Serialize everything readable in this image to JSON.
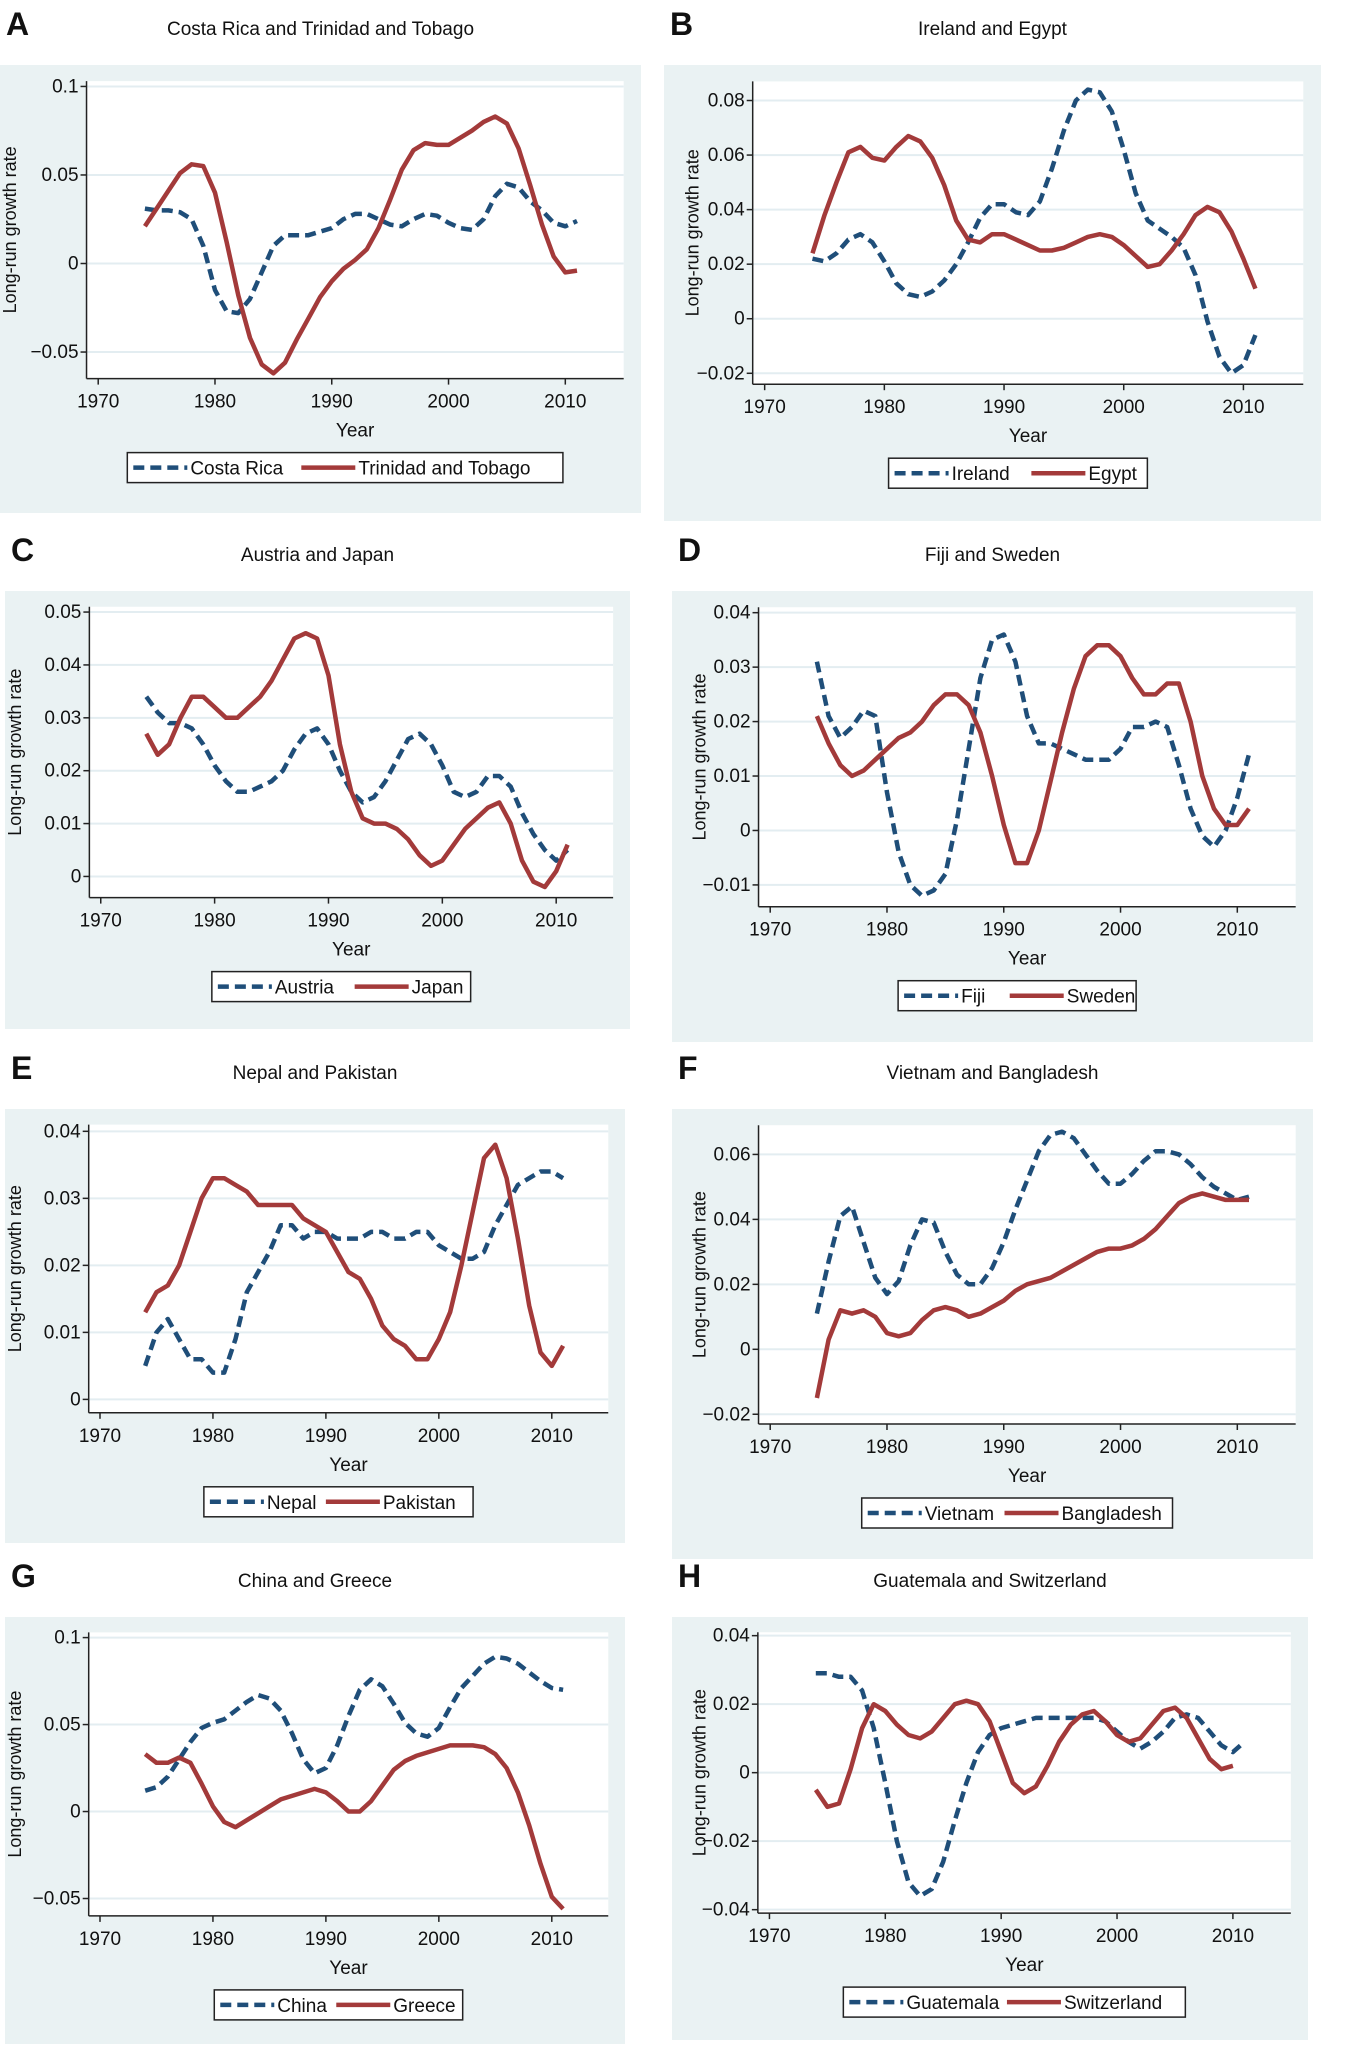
{
  "chart_data": [
    {
      "type": "line",
      "panel": "A",
      "title": "Costa Rica and Trinidad and Tobago",
      "xlabel": "Year",
      "ylabel": "Long-run growth rate",
      "xticks": [
        1970,
        1980,
        1990,
        2000,
        2010
      ],
      "yticks": [
        -0.05,
        0,
        0.05,
        0.1
      ],
      "ytick_labels": [
        "−0.05",
        "0",
        "0.05",
        "0.1"
      ],
      "xlim": [
        1969,
        2015
      ],
      "ylim": [
        -0.065,
        0.103
      ],
      "grid": true,
      "legend": "bottom",
      "series": [
        {
          "name": "Costa Rica",
          "style": "dashed",
          "color": "#1f4e79",
          "values": [
            0.031,
            0.03,
            0.03,
            0.029,
            0.025,
            0.01,
            -0.015,
            -0.027,
            -0.028,
            -0.02,
            -0.005,
            0.01,
            0.016,
            0.016,
            0.016,
            0.018,
            0.02,
            0.025,
            0.028,
            0.028,
            0.025,
            0.022,
            0.021,
            0.025,
            0.028,
            0.027,
            0.023,
            0.02,
            0.019,
            0.025,
            0.038,
            0.045,
            0.043,
            0.035,
            0.03,
            0.023,
            0.021,
            0.024
          ]
        },
        {
          "name": "Trinidad and Tobago",
          "style": "solid",
          "color": "#a33a3a",
          "values": [
            0.021,
            0.031,
            0.041,
            0.051,
            0.056,
            0.055,
            0.04,
            0.012,
            -0.018,
            -0.042,
            -0.057,
            -0.062,
            -0.056,
            -0.043,
            -0.031,
            -0.019,
            -0.01,
            -0.003,
            0.002,
            0.008,
            0.02,
            0.036,
            0.053,
            0.064,
            0.068,
            0.067,
            0.067,
            0.071,
            0.075,
            0.08,
            0.083,
            0.079,
            0.065,
            0.044,
            0.022,
            0.004,
            -0.005,
            -0.004
          ]
        }
      ]
    },
    {
      "type": "line",
      "panel": "B",
      "title": "Ireland and Egypt",
      "xlabel": "Year",
      "ylabel": "Long-run growth rate",
      "xticks": [
        1970,
        1980,
        1990,
        2000,
        2010
      ],
      "yticks": [
        -0.02,
        0,
        0.02,
        0.04,
        0.06,
        0.08
      ],
      "ytick_labels": [
        "−0.02",
        "0",
        "0.02",
        "0.04",
        "0.06",
        "0.08"
      ],
      "xlim": [
        1969,
        2015
      ],
      "ylim": [
        -0.024,
        0.087
      ],
      "grid": true,
      "legend": "bottom",
      "series": [
        {
          "name": "Ireland",
          "style": "dashed",
          "color": "#1f4e79",
          "values": [
            0.022,
            0.021,
            0.024,
            0.029,
            0.031,
            0.028,
            0.021,
            0.013,
            0.009,
            0.008,
            0.01,
            0.014,
            0.02,
            0.028,
            0.037,
            0.042,
            0.042,
            0.039,
            0.038,
            0.043,
            0.055,
            0.069,
            0.08,
            0.084,
            0.083,
            0.076,
            0.062,
            0.046,
            0.036,
            0.033,
            0.03,
            0.026,
            0.016,
            -0.001,
            -0.014,
            -0.02,
            -0.017,
            -0.006
          ]
        },
        {
          "name": "Egypt",
          "style": "solid",
          "color": "#a33a3a",
          "values": [
            0.024,
            0.038,
            0.05,
            0.061,
            0.063,
            0.059,
            0.058,
            0.063,
            0.067,
            0.065,
            0.059,
            0.049,
            0.036,
            0.029,
            0.028,
            0.031,
            0.031,
            0.029,
            0.027,
            0.025,
            0.025,
            0.026,
            0.028,
            0.03,
            0.031,
            0.03,
            0.027,
            0.023,
            0.019,
            0.02,
            0.025,
            0.031,
            0.038,
            0.041,
            0.039,
            0.032,
            0.022,
            0.011
          ]
        }
      ]
    },
    {
      "type": "line",
      "panel": "C",
      "title": "Austria and Japan",
      "xlabel": "Year",
      "ylabel": "Long-run growth rate",
      "xticks": [
        1970,
        1980,
        1990,
        2000,
        2010
      ],
      "yticks": [
        0,
        0.01,
        0.02,
        0.03,
        0.04,
        0.05
      ],
      "ytick_labels": [
        "0",
        "0.01",
        "0.02",
        "0.03",
        "0.04",
        "0.05"
      ],
      "xlim": [
        1969,
        2015
      ],
      "ylim": [
        -0.004,
        0.051
      ],
      "grid": true,
      "legend": "bottom",
      "series": [
        {
          "name": "Austria",
          "style": "dashed",
          "color": "#1f4e79",
          "values": [
            0.034,
            0.031,
            0.029,
            0.029,
            0.028,
            0.025,
            0.021,
            0.018,
            0.016,
            0.016,
            0.017,
            0.018,
            0.02,
            0.024,
            0.027,
            0.028,
            0.025,
            0.02,
            0.016,
            0.014,
            0.015,
            0.018,
            0.022,
            0.026,
            0.027,
            0.025,
            0.021,
            0.016,
            0.015,
            0.016,
            0.019,
            0.019,
            0.017,
            0.012,
            0.008,
            0.005,
            0.003,
            0.005
          ]
        },
        {
          "name": "Japan",
          "style": "solid",
          "color": "#a33a3a",
          "values": [
            0.027,
            0.023,
            0.025,
            0.03,
            0.034,
            0.034,
            0.032,
            0.03,
            0.03,
            0.032,
            0.034,
            0.037,
            0.041,
            0.045,
            0.046,
            0.045,
            0.038,
            0.025,
            0.016,
            0.011,
            0.01,
            0.01,
            0.009,
            0.007,
            0.004,
            0.002,
            0.003,
            0.006,
            0.009,
            0.011,
            0.013,
            0.014,
            0.01,
            0.003,
            -0.001,
            -0.002,
            0.001,
            0.006
          ]
        }
      ]
    },
    {
      "type": "line",
      "panel": "D",
      "title": "Fiji and Sweden",
      "xlabel": "Year",
      "ylabel": "Long-run growth rate",
      "xticks": [
        1970,
        1980,
        1990,
        2000,
        2010
      ],
      "yticks": [
        -0.01,
        0,
        0.01,
        0.02,
        0.03,
        0.04
      ],
      "ytick_labels": [
        "−0.01",
        "0",
        "0.01",
        "0.02",
        "0.03",
        "0.04"
      ],
      "xlim": [
        1969,
        2015
      ],
      "ylim": [
        -0.014,
        0.041
      ],
      "grid": true,
      "legend": "bottom",
      "series": [
        {
          "name": "Fiji",
          "style": "dashed",
          "color": "#1f4e79",
          "values": [
            0.031,
            0.021,
            0.017,
            0.019,
            0.022,
            0.021,
            0.007,
            -0.004,
            -0.01,
            -0.012,
            -0.011,
            -0.008,
            0.002,
            0.015,
            0.028,
            0.035,
            0.036,
            0.031,
            0.021,
            0.016,
            0.016,
            0.015,
            0.014,
            0.013,
            0.013,
            0.013,
            0.015,
            0.019,
            0.019,
            0.02,
            0.019,
            0.012,
            0.004,
            -0.001,
            -0.003,
            0.0,
            0.006,
            0.014
          ]
        },
        {
          "name": "Sweden",
          "style": "solid",
          "color": "#a33a3a",
          "values": [
            0.021,
            0.016,
            0.012,
            0.01,
            0.011,
            0.013,
            0.015,
            0.017,
            0.018,
            0.02,
            0.023,
            0.025,
            0.025,
            0.023,
            0.018,
            0.01,
            0.001,
            -0.006,
            -0.006,
            0.0,
            0.009,
            0.018,
            0.026,
            0.032,
            0.034,
            0.034,
            0.032,
            0.028,
            0.025,
            0.025,
            0.027,
            0.027,
            0.02,
            0.01,
            0.004,
            0.001,
            0.001,
            0.004
          ]
        }
      ]
    },
    {
      "type": "line",
      "panel": "E",
      "title": "Nepal and Pakistan",
      "xlabel": "Year",
      "ylabel": "Long-run growth rate",
      "xticks": [
        1970,
        1980,
        1990,
        2000,
        2010
      ],
      "yticks": [
        0,
        0.01,
        0.02,
        0.03,
        0.04
      ],
      "ytick_labels": [
        "0",
        "0.01",
        "0.02",
        "0.03",
        "0.04"
      ],
      "xlim": [
        1969,
        2015
      ],
      "ylim": [
        -0.002,
        0.041
      ],
      "grid": true,
      "legend": "bottom",
      "series": [
        {
          "name": "Nepal",
          "style": "dashed",
          "color": "#1f4e79",
          "values": [
            0.005,
            0.01,
            0.012,
            0.009,
            0.006,
            0.006,
            0.004,
            0.004,
            0.009,
            0.016,
            0.019,
            0.022,
            0.026,
            0.026,
            0.024,
            0.025,
            0.025,
            0.024,
            0.024,
            0.024,
            0.025,
            0.025,
            0.024,
            0.024,
            0.025,
            0.025,
            0.023,
            0.022,
            0.021,
            0.021,
            0.022,
            0.026,
            0.029,
            0.032,
            0.033,
            0.034,
            0.034,
            0.033
          ]
        },
        {
          "name": "Pakistan",
          "style": "solid",
          "color": "#a33a3a",
          "values": [
            0.013,
            0.016,
            0.017,
            0.02,
            0.025,
            0.03,
            0.033,
            0.033,
            0.032,
            0.031,
            0.029,
            0.029,
            0.029,
            0.029,
            0.027,
            0.026,
            0.025,
            0.022,
            0.019,
            0.018,
            0.015,
            0.011,
            0.009,
            0.008,
            0.006,
            0.006,
            0.009,
            0.013,
            0.02,
            0.028,
            0.036,
            0.038,
            0.033,
            0.024,
            0.014,
            0.007,
            0.005,
            0.008
          ]
        }
      ]
    },
    {
      "type": "line",
      "panel": "F",
      "title": "Vietnam and Bangladesh",
      "xlabel": "Year",
      "ylabel": "Long-run growth rate",
      "xticks": [
        1970,
        1980,
        1990,
        2000,
        2010
      ],
      "yticks": [
        -0.02,
        0,
        0.02,
        0.04,
        0.06
      ],
      "ytick_labels": [
        "−0.02",
        "0",
        "0.02",
        "0.04",
        "0.06"
      ],
      "xlim": [
        1969,
        2015
      ],
      "ylim": [
        -0.023,
        0.069
      ],
      "grid": true,
      "legend": "bottom",
      "series": [
        {
          "name": "Vietnam",
          "style": "dashed",
          "color": "#1f4e79",
          "values": [
            0.011,
            0.027,
            0.041,
            0.044,
            0.033,
            0.022,
            0.017,
            0.021,
            0.032,
            0.04,
            0.039,
            0.03,
            0.023,
            0.02,
            0.02,
            0.025,
            0.033,
            0.043,
            0.052,
            0.061,
            0.066,
            0.067,
            0.065,
            0.06,
            0.055,
            0.051,
            0.051,
            0.054,
            0.058,
            0.061,
            0.061,
            0.06,
            0.057,
            0.053,
            0.05,
            0.048,
            0.046,
            0.047
          ]
        },
        {
          "name": "Bangladesh",
          "style": "solid",
          "color": "#a33a3a",
          "values": [
            -0.015,
            0.003,
            0.012,
            0.011,
            0.012,
            0.01,
            0.005,
            0.004,
            0.005,
            0.009,
            0.012,
            0.013,
            0.012,
            0.01,
            0.011,
            0.013,
            0.015,
            0.018,
            0.02,
            0.021,
            0.022,
            0.024,
            0.026,
            0.028,
            0.03,
            0.031,
            0.031,
            0.032,
            0.034,
            0.037,
            0.041,
            0.045,
            0.047,
            0.048,
            0.047,
            0.046,
            0.046,
            0.046
          ]
        }
      ]
    },
    {
      "type": "line",
      "panel": "G",
      "title": "China and Greece",
      "xlabel": "Year",
      "ylabel": "Long-run growth rate",
      "xticks": [
        1970,
        1980,
        1990,
        2000,
        2010
      ],
      "yticks": [
        -0.05,
        0,
        0.05,
        0.1
      ],
      "ytick_labels": [
        "−0.05",
        "0",
        "0.05",
        "0.1"
      ],
      "xlim": [
        1969,
        2015
      ],
      "ylim": [
        -0.06,
        0.103
      ],
      "grid": true,
      "legend": "bottom",
      "series": [
        {
          "name": "China",
          "style": "dashed",
          "color": "#1f4e79",
          "values": [
            0.012,
            0.014,
            0.02,
            0.03,
            0.04,
            0.048,
            0.051,
            0.053,
            0.058,
            0.063,
            0.067,
            0.065,
            0.058,
            0.045,
            0.03,
            0.022,
            0.025,
            0.038,
            0.055,
            0.07,
            0.076,
            0.072,
            0.062,
            0.051,
            0.045,
            0.043,
            0.048,
            0.06,
            0.071,
            0.078,
            0.085,
            0.089,
            0.088,
            0.085,
            0.08,
            0.075,
            0.071,
            0.07
          ]
        },
        {
          "name": "Greece",
          "style": "solid",
          "color": "#a33a3a",
          "values": [
            0.033,
            0.028,
            0.028,
            0.031,
            0.028,
            0.016,
            0.003,
            -0.006,
            -0.009,
            -0.005,
            -0.001,
            0.003,
            0.007,
            0.009,
            0.011,
            0.013,
            0.011,
            0.006,
            0.0,
            0.0,
            0.006,
            0.015,
            0.024,
            0.029,
            0.032,
            0.034,
            0.036,
            0.038,
            0.038,
            0.038,
            0.037,
            0.033,
            0.025,
            0.011,
            -0.008,
            -0.03,
            -0.049,
            -0.056
          ]
        }
      ]
    },
    {
      "type": "line",
      "panel": "H",
      "title": "Guatemala and Switzerland",
      "xlabel": "Year",
      "ylabel": "Long-run growth rate",
      "xticks": [
        1970,
        1980,
        1990,
        2000,
        2010
      ],
      "yticks": [
        -0.04,
        -0.02,
        0,
        0.02,
        0.04
      ],
      "ytick_labels": [
        "−0.04",
        "−0.02",
        "0",
        "0.02",
        "0.04"
      ],
      "xlim": [
        1969,
        2015
      ],
      "ylim": [
        -0.041,
        0.041
      ],
      "grid": true,
      "legend": "bottom",
      "series": [
        {
          "name": "Guatemala",
          "style": "dashed",
          "color": "#1f4e79",
          "values": [
            0.029,
            0.029,
            0.028,
            0.028,
            0.024,
            0.013,
            -0.003,
            -0.02,
            -0.032,
            -0.036,
            -0.034,
            -0.026,
            -0.014,
            -0.003,
            0.006,
            0.011,
            0.013,
            0.014,
            0.015,
            0.016,
            0.016,
            0.016,
            0.016,
            0.016,
            0.016,
            0.015,
            0.012,
            0.009,
            0.007,
            0.009,
            0.012,
            0.016,
            0.017,
            0.016,
            0.012,
            0.008,
            0.006,
            0.009
          ]
        },
        {
          "name": "Switzerland",
          "style": "solid",
          "color": "#a33a3a",
          "values": [
            -0.005,
            -0.01,
            -0.009,
            0.001,
            0.013,
            0.02,
            0.018,
            0.014,
            0.011,
            0.01,
            0.012,
            0.016,
            0.02,
            0.021,
            0.02,
            0.015,
            0.006,
            -0.003,
            -0.006,
            -0.004,
            0.002,
            0.009,
            0.014,
            0.017,
            0.018,
            0.015,
            0.011,
            0.009,
            0.01,
            0.014,
            0.018,
            0.019,
            0.016,
            0.01,
            0.004,
            0.001,
            0.002,
            null
          ]
        }
      ]
    }
  ],
  "years_start": 1974
}
